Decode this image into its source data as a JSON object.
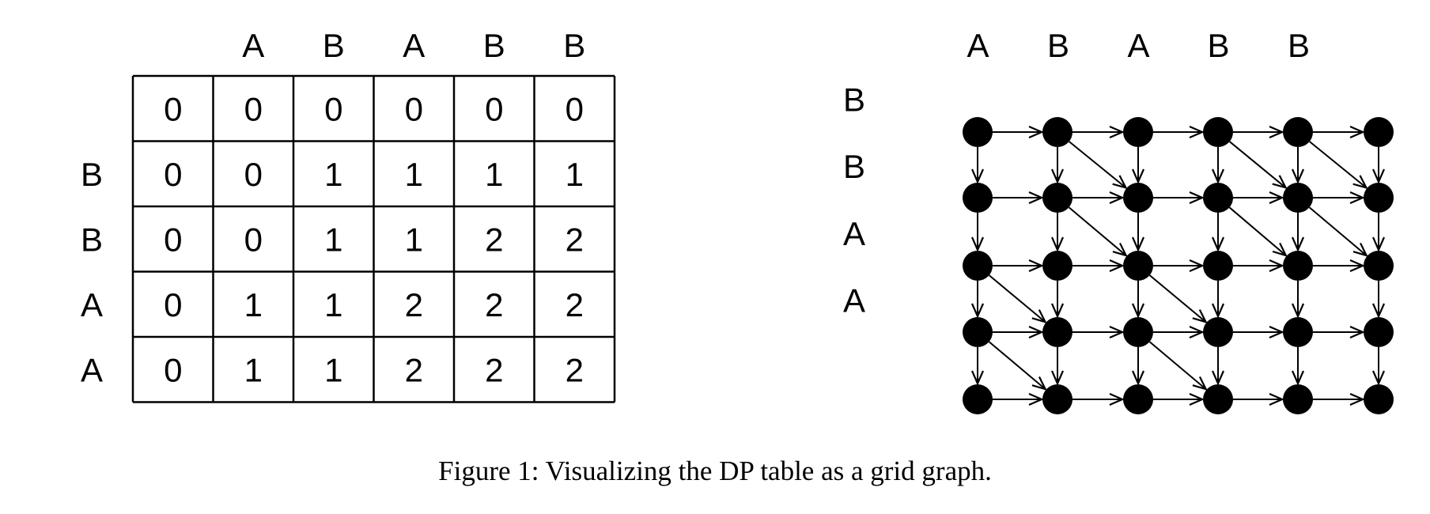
{
  "dp_table": {
    "column_labels": [
      "A",
      "B",
      "A",
      "B",
      "B"
    ],
    "row_labels": [
      "B",
      "B",
      "A",
      "A"
    ],
    "cells": [
      [
        "0",
        "0",
        "0",
        "0",
        "0",
        "0"
      ],
      [
        "0",
        "0",
        "1",
        "1",
        "1",
        "1"
      ],
      [
        "0",
        "0",
        "1",
        "1",
        "2",
        "2"
      ],
      [
        "0",
        "1",
        "1",
        "2",
        "2",
        "2"
      ],
      [
        "0",
        "1",
        "1",
        "2",
        "2",
        "2"
      ]
    ]
  },
  "grid_graph": {
    "column_labels": [
      "A",
      "B",
      "A",
      "B",
      "B"
    ],
    "row_labels": [
      "B",
      "B",
      "A",
      "A"
    ],
    "node_rows": 5,
    "node_cols": 6,
    "diagonal_edges_from": [
      [
        0,
        1
      ],
      [
        0,
        3
      ],
      [
        0,
        4
      ],
      [
        1,
        1
      ],
      [
        1,
        3
      ],
      [
        1,
        4
      ],
      [
        2,
        0
      ],
      [
        2,
        2
      ],
      [
        3,
        0
      ],
      [
        3,
        2
      ]
    ]
  },
  "caption": "Figure 1: Visualizing the DP table as a grid graph."
}
